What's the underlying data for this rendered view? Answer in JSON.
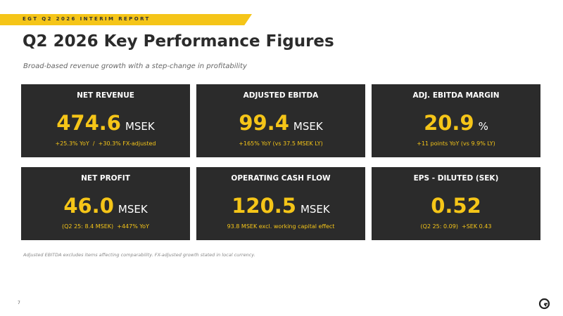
{
  "header": {
    "banner": "EGT Q2 2026 INTERIM REPORT",
    "title": "Q2 2026 Key Performance Figures",
    "subtitle": "Broad-based revenue growth with a step-change in profitability"
  },
  "cards": [
    {
      "label": "NET REVENUE",
      "value": "474.6",
      "unit": "MSEK",
      "note": "+25.3% YoY  /  +30.3% FX-adjusted"
    },
    {
      "label": "ADJUSTED EBITDA",
      "value": "99.4",
      "unit": "MSEK",
      "note": "+165% YoY (vs 37.5 MSEK LY)"
    },
    {
      "label": "ADJ. EBITDA MARGIN",
      "value": "20.9",
      "unit": "%",
      "note": "+11 points YoY (vs 9.9% LY)"
    },
    {
      "label": "NET PROFIT",
      "value": "46.0",
      "unit": "MSEK",
      "note": "(Q2 25: 8.4 MSEK)  +447% YoY"
    },
    {
      "label": "OPERATING CASH FLOW",
      "value": "120.5",
      "unit": "MSEK",
      "note": "93.8 MSEK excl. working capital effect"
    },
    {
      "label": "EPS - DILUTED (SEK)",
      "value": "0.52",
      "note": "(Q2 25: 0.09)  +SEK 0.43"
    }
  ],
  "footnote": "Adjusted EBITDA excludes items affecting comparability. FX-adjusted growth stated in local currency.",
  "page_number": "7"
}
